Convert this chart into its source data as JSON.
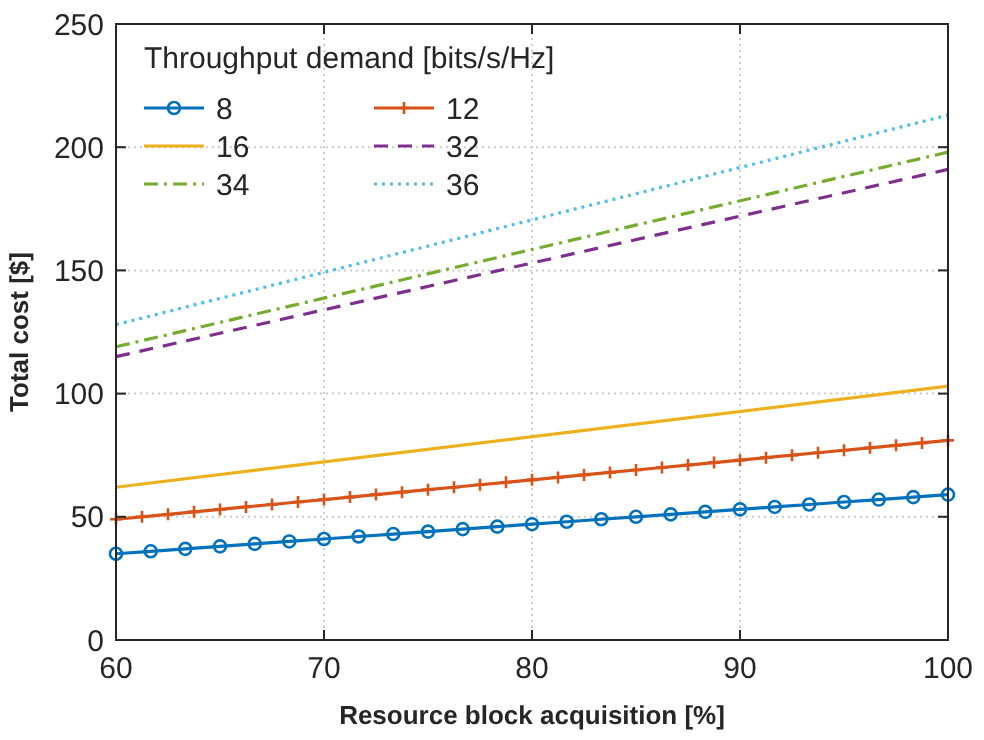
{
  "chart_data": {
    "type": "line",
    "xlabel": "Resource block acquisition [%]",
    "ylabel": "Total cost [$]",
    "legend_title": "Throughput demand [bits/s/Hz]",
    "legend": "top left",
    "grid": true,
    "xlim": [
      60,
      100
    ],
    "xticks": [
      60,
      70,
      80,
      90,
      100
    ],
    "ylim": [
      0,
      250
    ],
    "yticks": [
      0,
      50,
      100,
      150,
      200,
      250
    ],
    "series": [
      {
        "name": "8",
        "color": "#0072bd",
        "marker": "circle",
        "line_style": "solid",
        "x": [
          60,
          61.67,
          63.33,
          65,
          66.67,
          68.33,
          70,
          71.67,
          73.33,
          75,
          76.67,
          78.33,
          80,
          81.67,
          83.33,
          85,
          86.67,
          88.33,
          90,
          91.67,
          93.33,
          95,
          96.67,
          98.33,
          100
        ],
        "values": [
          35,
          36,
          37,
          38,
          39,
          40,
          41,
          42,
          43,
          44,
          45,
          46,
          47,
          48,
          49,
          50,
          51,
          52,
          53,
          54,
          55,
          56,
          57,
          58,
          59
        ]
      },
      {
        "name": "12",
        "color": "#d95319",
        "marker": "cross",
        "line_style": "solid",
        "x": [
          60,
          61.25,
          62.5,
          63.75,
          65,
          66.25,
          67.5,
          68.75,
          70,
          71.25,
          72.5,
          73.75,
          75,
          76.25,
          77.5,
          78.75,
          80,
          81.25,
          82.5,
          83.75,
          85,
          86.25,
          87.5,
          88.75,
          90,
          91.25,
          92.5,
          93.75,
          95,
          96.25,
          97.5,
          98.75,
          100
        ],
        "values": [
          49,
          50,
          51,
          52,
          53,
          54,
          55,
          56,
          57,
          58,
          59,
          60,
          61,
          62,
          63,
          64,
          65,
          66,
          67,
          68,
          69,
          70,
          71,
          72,
          73,
          74,
          75,
          76,
          77,
          78,
          79,
          80,
          81
        ]
      },
      {
        "name": "16",
        "color": "#edb120",
        "line_style": "solid",
        "x": [
          60,
          100
        ],
        "values": [
          62,
          103
        ]
      },
      {
        "name": "32",
        "color": "#7e2f8e",
        "line_style": "dashed",
        "x": [
          60,
          100
        ],
        "values": [
          115,
          191
        ]
      },
      {
        "name": "34",
        "color": "#77ac30",
        "line_style": "dashdot",
        "x": [
          60,
          100
        ],
        "values": [
          119,
          198
        ]
      },
      {
        "name": "36",
        "color": "#4dbeee",
        "line_style": "dotted",
        "x": [
          60,
          100
        ],
        "values": [
          128,
          213
        ]
      }
    ]
  }
}
